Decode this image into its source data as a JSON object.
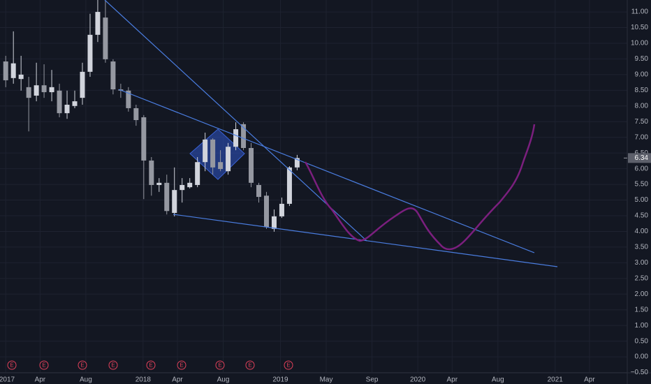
{
  "chart_data": {
    "type": "candlestick",
    "up_color": "#d1d4dc",
    "down_color": "#9598a1",
    "grid": true,
    "grid_color": "#1e2230",
    "xlim": [
      -0.5,
      54.3
    ],
    "ylim": [
      -0.51,
      11.38
    ],
    "xticks": [
      {
        "value": 0,
        "label": "2017"
      },
      {
        "value": 3,
        "label": "Apr"
      },
      {
        "value": 7,
        "label": "Aug"
      },
      {
        "value": 12,
        "label": "2018"
      },
      {
        "value": 15,
        "label": "Apr"
      },
      {
        "value": 19,
        "label": "Aug"
      },
      {
        "value": 24,
        "label": "2019"
      },
      {
        "value": 28,
        "label": "May"
      },
      {
        "value": 32,
        "label": "Sep"
      },
      {
        "value": 36,
        "label": "2020"
      },
      {
        "value": 39,
        "label": "Apr"
      },
      {
        "value": 43,
        "label": "Aug"
      },
      {
        "value": 48,
        "label": "2021"
      },
      {
        "value": 51,
        "label": "Apr"
      }
    ],
    "yticks": [
      {
        "value": -0.5,
        "label": "−0.50"
      },
      {
        "value": 0,
        "label": "0.00"
      },
      {
        "value": 0.5,
        "label": "0.50"
      },
      {
        "value": 1,
        "label": "1.00"
      },
      {
        "value": 1.5,
        "label": "1.50"
      },
      {
        "value": 2,
        "label": "2.00"
      },
      {
        "value": 2.5,
        "label": "2.50"
      },
      {
        "value": 3,
        "label": "3.00"
      },
      {
        "value": 3.5,
        "label": "3.50"
      },
      {
        "value": 4,
        "label": "4.00"
      },
      {
        "value": 4.5,
        "label": "4.50"
      },
      {
        "value": 5,
        "label": "5.00"
      },
      {
        "value": 5.5,
        "label": "5.50"
      },
      {
        "value": 6,
        "label": "6.00"
      },
      {
        "value": 6.5,
        "label": "6.50"
      },
      {
        "value": 7,
        "label": "7.00"
      },
      {
        "value": 7.5,
        "label": "7.50"
      },
      {
        "value": 8,
        "label": "8.00"
      },
      {
        "value": 8.5,
        "label": "8.50"
      },
      {
        "value": 9,
        "label": "9.00"
      },
      {
        "value": 9.5,
        "label": "9.50"
      },
      {
        "value": 10,
        "label": "10.00"
      },
      {
        "value": 10.5,
        "label": "10.50"
      },
      {
        "value": 11,
        "label": "11.00"
      }
    ],
    "events": [
      "E",
      "E",
      "E",
      "E",
      "E",
      "E",
      "E",
      "E",
      "E"
    ],
    "candles": [
      {
        "x": 0,
        "open": 9.42,
        "high": 9.6,
        "low": 8.6,
        "close": 8.82
      },
      {
        "x": 0.67,
        "open": 8.89,
        "high": 10.38,
        "low": 8.71,
        "close": 9.36
      },
      {
        "x": 1.34,
        "open": 8.86,
        "high": 9.6,
        "low": 8.49,
        "close": 9.0
      },
      {
        "x": 2.01,
        "open": 8.6,
        "high": 8.93,
        "low": 7.19,
        "close": 8.26
      },
      {
        "x": 2.68,
        "open": 8.33,
        "high": 9.38,
        "low": 8.15,
        "close": 8.66
      },
      {
        "x": 3.35,
        "open": 8.66,
        "high": 9.33,
        "low": 8.26,
        "close": 8.44
      },
      {
        "x": 4.02,
        "open": 8.44,
        "high": 9.15,
        "low": 8.15,
        "close": 8.6
      },
      {
        "x": 4.69,
        "open": 8.49,
        "high": 8.71,
        "low": 7.64,
        "close": 7.77
      },
      {
        "x": 5.36,
        "open": 7.77,
        "high": 8.49,
        "low": 7.59,
        "close": 8.04
      },
      {
        "x": 6.03,
        "open": 8.0,
        "high": 8.49,
        "low": 7.93,
        "close": 8.15
      },
      {
        "x": 6.7,
        "open": 8.26,
        "high": 9.38,
        "low": 8.04,
        "close": 9.09
      },
      {
        "x": 7.37,
        "open": 9.09,
        "high": 10.94,
        "low": 8.93,
        "close": 10.27
      },
      {
        "x": 8.04,
        "open": 10.27,
        "high": 11.38,
        "low": 10.04,
        "close": 11.0
      },
      {
        "x": 8.71,
        "open": 10.82,
        "high": 11.38,
        "low": 9.38,
        "close": 9.49
      },
      {
        "x": 9.38,
        "open": 9.42,
        "high": 9.49,
        "low": 8.37,
        "close": 8.53
      },
      {
        "x": 10.05,
        "open": 8.53,
        "high": 8.71,
        "low": 8.26,
        "close": 8.49
      },
      {
        "x": 10.72,
        "open": 8.49,
        "high": 8.6,
        "low": 7.82,
        "close": 7.93
      },
      {
        "x": 11.39,
        "open": 7.93,
        "high": 8.04,
        "low": 7.37,
        "close": 7.55
      },
      {
        "x": 12.06,
        "open": 7.64,
        "high": 7.71,
        "low": 5.03,
        "close": 6.26
      },
      {
        "x": 12.73,
        "open": 6.26,
        "high": 6.37,
        "low": 5.14,
        "close": 5.48
      },
      {
        "x": 13.4,
        "open": 5.48,
        "high": 5.7,
        "low": 5.26,
        "close": 5.55
      },
      {
        "x": 14.07,
        "open": 5.55,
        "high": 5.81,
        "low": 4.54,
        "close": 4.65
      },
      {
        "x": 14.74,
        "open": 4.59,
        "high": 6.04,
        "low": 4.48,
        "close": 5.32
      },
      {
        "x": 15.41,
        "open": 5.32,
        "high": 5.7,
        "low": 4.92,
        "close": 5.48
      },
      {
        "x": 16.08,
        "open": 5.41,
        "high": 5.7,
        "low": 5.37,
        "close": 5.55
      },
      {
        "x": 16.75,
        "open": 5.48,
        "high": 6.37,
        "low": 5.41,
        "close": 6.21
      },
      {
        "x": 17.42,
        "open": 6.21,
        "high": 7.15,
        "low": 5.92,
        "close": 6.93
      },
      {
        "x": 18.09,
        "open": 6.93,
        "high": 6.97,
        "low": 5.81,
        "close": 6.04
      },
      {
        "x": 18.76,
        "open": 6.21,
        "high": 6.59,
        "low": 5.92,
        "close": 5.99
      },
      {
        "x": 19.43,
        "open": 5.92,
        "high": 6.82,
        "low": 5.81,
        "close": 6.7
      },
      {
        "x": 20.1,
        "open": 6.7,
        "high": 7.48,
        "low": 6.59,
        "close": 7.26
      },
      {
        "x": 20.77,
        "open": 7.42,
        "high": 7.48,
        "low": 6.59,
        "close": 6.66
      },
      {
        "x": 21.44,
        "open": 6.66,
        "high": 6.82,
        "low": 5.41,
        "close": 5.55
      },
      {
        "x": 22.11,
        "open": 5.48,
        "high": 5.55,
        "low": 4.92,
        "close": 5.1
      },
      {
        "x": 22.78,
        "open": 5.14,
        "high": 5.26,
        "low": 4.08,
        "close": 4.14
      },
      {
        "x": 23.45,
        "open": 4.08,
        "high": 4.7,
        "low": 3.99,
        "close": 4.48
      },
      {
        "x": 24.12,
        "open": 4.48,
        "high": 5.08,
        "low": 4.43,
        "close": 4.88
      },
      {
        "x": 24.79,
        "open": 4.88,
        "high": 6.08,
        "low": 4.81,
        "close": 6.04
      },
      {
        "x": 25.46,
        "open": 6.04,
        "high": 6.44,
        "low": 5.95,
        "close": 6.34
      }
    ]
  }
}
